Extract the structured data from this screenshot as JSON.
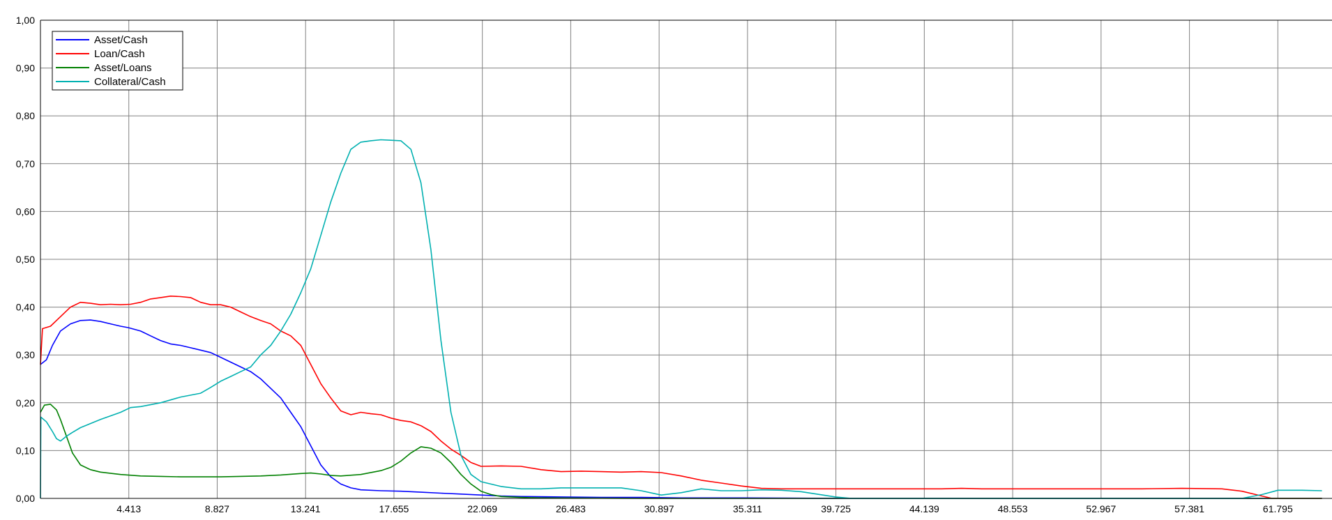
{
  "chart_data": {
    "type": "line",
    "title": "",
    "xlabel": "",
    "ylabel": "",
    "xlim": [
      0,
      64.5
    ],
    "ylim": [
      0,
      1.0
    ],
    "grid": true,
    "legend_position": "top-left",
    "x_ticks": [
      4.413,
      8.827,
      13.241,
      17.655,
      22.069,
      26.483,
      30.897,
      35.311,
      39.725,
      44.139,
      48.553,
      52.967,
      57.381,
      61.795
    ],
    "x_tick_labels": [
      "4.413",
      "8.827",
      "13.241",
      "17.655",
      "22.069",
      "26.483",
      "30.897",
      "35.311",
      "39.725",
      "44.139",
      "48.553",
      "52.967",
      "57.381",
      "61.795"
    ],
    "y_ticks": [
      0,
      0.1,
      0.2,
      0.3,
      0.4,
      0.5,
      0.6,
      0.7,
      0.8,
      0.9,
      1.0
    ],
    "y_tick_labels": [
      "0,00",
      "0,10",
      "0,20",
      "0,30",
      "0,40",
      "0,50",
      "0,60",
      "0,70",
      "0,80",
      "0,90",
      "1,00"
    ],
    "series": [
      {
        "name": "Asset/Cash",
        "color": "#0000ff",
        "points": [
          [
            0,
            0.28
          ],
          [
            0.3,
            0.29
          ],
          [
            0.6,
            0.32
          ],
          [
            1.0,
            0.35
          ],
          [
            1.5,
            0.365
          ],
          [
            2.0,
            0.372
          ],
          [
            2.5,
            0.373
          ],
          [
            3.0,
            0.37
          ],
          [
            3.5,
            0.365
          ],
          [
            4.0,
            0.36
          ],
          [
            4.4,
            0.357
          ],
          [
            5.0,
            0.35
          ],
          [
            5.5,
            0.34
          ],
          [
            6.0,
            0.33
          ],
          [
            6.5,
            0.323
          ],
          [
            7.0,
            0.32
          ],
          [
            7.5,
            0.315
          ],
          [
            8.0,
            0.31
          ],
          [
            8.5,
            0.305
          ],
          [
            9.0,
            0.295
          ],
          [
            9.5,
            0.285
          ],
          [
            10.0,
            0.275
          ],
          [
            10.5,
            0.265
          ],
          [
            11.0,
            0.25
          ],
          [
            11.5,
            0.23
          ],
          [
            12.0,
            0.21
          ],
          [
            12.5,
            0.18
          ],
          [
            13.0,
            0.15
          ],
          [
            13.5,
            0.11
          ],
          [
            14.0,
            0.07
          ],
          [
            14.5,
            0.045
          ],
          [
            15.0,
            0.03
          ],
          [
            15.5,
            0.022
          ],
          [
            16.0,
            0.018
          ],
          [
            17.0,
            0.016
          ],
          [
            18.0,
            0.015
          ],
          [
            19.0,
            0.013
          ],
          [
            20.0,
            0.011
          ],
          [
            21.0,
            0.009
          ],
          [
            22.0,
            0.007
          ],
          [
            23.0,
            0.005
          ],
          [
            24.0,
            0.004
          ],
          [
            26.0,
            0.003
          ],
          [
            28.0,
            0.002
          ],
          [
            30.0,
            0.002
          ],
          [
            32.0,
            0.001
          ],
          [
            35.0,
            0.001
          ],
          [
            40.0,
            0.0
          ],
          [
            50.0,
            0.0
          ],
          [
            64.0,
            0.0
          ]
        ]
      },
      {
        "name": "Loan/Cash",
        "color": "#ff0000",
        "points": [
          [
            0,
            0.28
          ],
          [
            0.1,
            0.355
          ],
          [
            0.5,
            0.36
          ],
          [
            1.0,
            0.38
          ],
          [
            1.5,
            0.4
          ],
          [
            2.0,
            0.41
          ],
          [
            2.5,
            0.408
          ],
          [
            3.0,
            0.405
          ],
          [
            3.5,
            0.406
          ],
          [
            4.0,
            0.405
          ],
          [
            4.5,
            0.406
          ],
          [
            5.0,
            0.41
          ],
          [
            5.5,
            0.417
          ],
          [
            6.0,
            0.42
          ],
          [
            6.5,
            0.423
          ],
          [
            7.0,
            0.422
          ],
          [
            7.5,
            0.42
          ],
          [
            8.0,
            0.41
          ],
          [
            8.5,
            0.405
          ],
          [
            9.0,
            0.405
          ],
          [
            9.5,
            0.4
          ],
          [
            10.0,
            0.39
          ],
          [
            10.5,
            0.38
          ],
          [
            11.0,
            0.372
          ],
          [
            11.5,
            0.365
          ],
          [
            12.0,
            0.35
          ],
          [
            12.5,
            0.34
          ],
          [
            13.0,
            0.32
          ],
          [
            13.5,
            0.28
          ],
          [
            14.0,
            0.24
          ],
          [
            14.5,
            0.21
          ],
          [
            15.0,
            0.183
          ],
          [
            15.5,
            0.175
          ],
          [
            16.0,
            0.18
          ],
          [
            16.5,
            0.177
          ],
          [
            17.0,
            0.175
          ],
          [
            17.5,
            0.168
          ],
          [
            18.0,
            0.163
          ],
          [
            18.5,
            0.16
          ],
          [
            19.0,
            0.152
          ],
          [
            19.5,
            0.14
          ],
          [
            20.0,
            0.12
          ],
          [
            20.5,
            0.103
          ],
          [
            21.0,
            0.09
          ],
          [
            21.5,
            0.075
          ],
          [
            22.0,
            0.067
          ],
          [
            23.0,
            0.068
          ],
          [
            24.0,
            0.067
          ],
          [
            25.0,
            0.06
          ],
          [
            26.0,
            0.056
          ],
          [
            27.0,
            0.057
          ],
          [
            28.0,
            0.056
          ],
          [
            29.0,
            0.055
          ],
          [
            30.0,
            0.056
          ],
          [
            31.0,
            0.054
          ],
          [
            32.0,
            0.047
          ],
          [
            33.0,
            0.038
          ],
          [
            34.0,
            0.032
          ],
          [
            35.0,
            0.026
          ],
          [
            36.0,
            0.021
          ],
          [
            37.0,
            0.02
          ],
          [
            38.0,
            0.02
          ],
          [
            39.7,
            0.02
          ],
          [
            45.0,
            0.02
          ],
          [
            46.0,
            0.021
          ],
          [
            47.0,
            0.02
          ],
          [
            55.0,
            0.02
          ],
          [
            57.0,
            0.021
          ],
          [
            59.0,
            0.02
          ],
          [
            60.0,
            0.015
          ],
          [
            61.0,
            0.005
          ],
          [
            61.5,
            0.0
          ],
          [
            64.0,
            0.0
          ]
        ]
      },
      {
        "name": "Asset/Loans",
        "color": "#008000",
        "points": [
          [
            0,
            0.18
          ],
          [
            0.2,
            0.195
          ],
          [
            0.5,
            0.197
          ],
          [
            0.8,
            0.185
          ],
          [
            1.0,
            0.165
          ],
          [
            1.3,
            0.13
          ],
          [
            1.6,
            0.095
          ],
          [
            2.0,
            0.07
          ],
          [
            2.5,
            0.06
          ],
          [
            3.0,
            0.055
          ],
          [
            4.0,
            0.05
          ],
          [
            5.0,
            0.047
          ],
          [
            6.0,
            0.046
          ],
          [
            7.0,
            0.045
          ],
          [
            8.0,
            0.045
          ],
          [
            9.0,
            0.045
          ],
          [
            10.0,
            0.046
          ],
          [
            11.0,
            0.047
          ],
          [
            12.0,
            0.049
          ],
          [
            13.0,
            0.052
          ],
          [
            13.5,
            0.053
          ],
          [
            14.0,
            0.051
          ],
          [
            14.5,
            0.048
          ],
          [
            15.0,
            0.047
          ],
          [
            16.0,
            0.05
          ],
          [
            17.0,
            0.058
          ],
          [
            17.5,
            0.065
          ],
          [
            18.0,
            0.078
          ],
          [
            18.5,
            0.095
          ],
          [
            19.0,
            0.108
          ],
          [
            19.5,
            0.105
          ],
          [
            20.0,
            0.095
          ],
          [
            20.5,
            0.075
          ],
          [
            21.0,
            0.05
          ],
          [
            21.5,
            0.03
          ],
          [
            22.0,
            0.015
          ],
          [
            22.5,
            0.008
          ],
          [
            23.0,
            0.004
          ],
          [
            24.0,
            0.002
          ],
          [
            25.0,
            0.001
          ],
          [
            30.0,
            0.0
          ],
          [
            40.0,
            0.0
          ],
          [
            50.0,
            0.0
          ],
          [
            64.0,
            0.0
          ]
        ]
      },
      {
        "name": "Collateral/Cash",
        "color": "#00b0b0",
        "points": [
          [
            0,
            0.0
          ],
          [
            0.02,
            0.17
          ],
          [
            0.3,
            0.16
          ],
          [
            0.6,
            0.14
          ],
          [
            0.8,
            0.125
          ],
          [
            1.0,
            0.12
          ],
          [
            1.3,
            0.13
          ],
          [
            1.6,
            0.138
          ],
          [
            2.0,
            0.148
          ],
          [
            3.0,
            0.165
          ],
          [
            4.0,
            0.18
          ],
          [
            4.5,
            0.19
          ],
          [
            5.0,
            0.192
          ],
          [
            6.0,
            0.2
          ],
          [
            7.0,
            0.212
          ],
          [
            8.0,
            0.22
          ],
          [
            8.5,
            0.232
          ],
          [
            9.0,
            0.245
          ],
          [
            9.5,
            0.255
          ],
          [
            10.0,
            0.265
          ],
          [
            10.5,
            0.275
          ],
          [
            11.0,
            0.3
          ],
          [
            11.5,
            0.32
          ],
          [
            12.0,
            0.35
          ],
          [
            12.5,
            0.385
          ],
          [
            13.0,
            0.43
          ],
          [
            13.5,
            0.48
          ],
          [
            14.0,
            0.55
          ],
          [
            14.5,
            0.62
          ],
          [
            15.0,
            0.68
          ],
          [
            15.5,
            0.73
          ],
          [
            16.0,
            0.745
          ],
          [
            16.5,
            0.748
          ],
          [
            17.0,
            0.75
          ],
          [
            17.5,
            0.749
          ],
          [
            18.0,
            0.748
          ],
          [
            18.5,
            0.73
          ],
          [
            19.0,
            0.66
          ],
          [
            19.5,
            0.52
          ],
          [
            20.0,
            0.33
          ],
          [
            20.5,
            0.18
          ],
          [
            21.0,
            0.09
          ],
          [
            21.5,
            0.05
          ],
          [
            22.0,
            0.035
          ],
          [
            23.0,
            0.025
          ],
          [
            24.0,
            0.02
          ],
          [
            25.0,
            0.02
          ],
          [
            26.0,
            0.022
          ],
          [
            27.0,
            0.022
          ],
          [
            28.0,
            0.022
          ],
          [
            29.0,
            0.022
          ],
          [
            30.0,
            0.016
          ],
          [
            31.0,
            0.007
          ],
          [
            32.0,
            0.012
          ],
          [
            33.0,
            0.02
          ],
          [
            34.0,
            0.016
          ],
          [
            35.0,
            0.016
          ],
          [
            36.0,
            0.018
          ],
          [
            37.0,
            0.017
          ],
          [
            38.0,
            0.014
          ],
          [
            39.7,
            0.003
          ],
          [
            40.5,
            0.0
          ],
          [
            45.0,
            0.0
          ],
          [
            55.0,
            0.0
          ],
          [
            60.0,
            0.0
          ],
          [
            61.0,
            0.008
          ],
          [
            61.8,
            0.017
          ],
          [
            63.0,
            0.017
          ],
          [
            64.0,
            0.016
          ]
        ]
      }
    ]
  }
}
